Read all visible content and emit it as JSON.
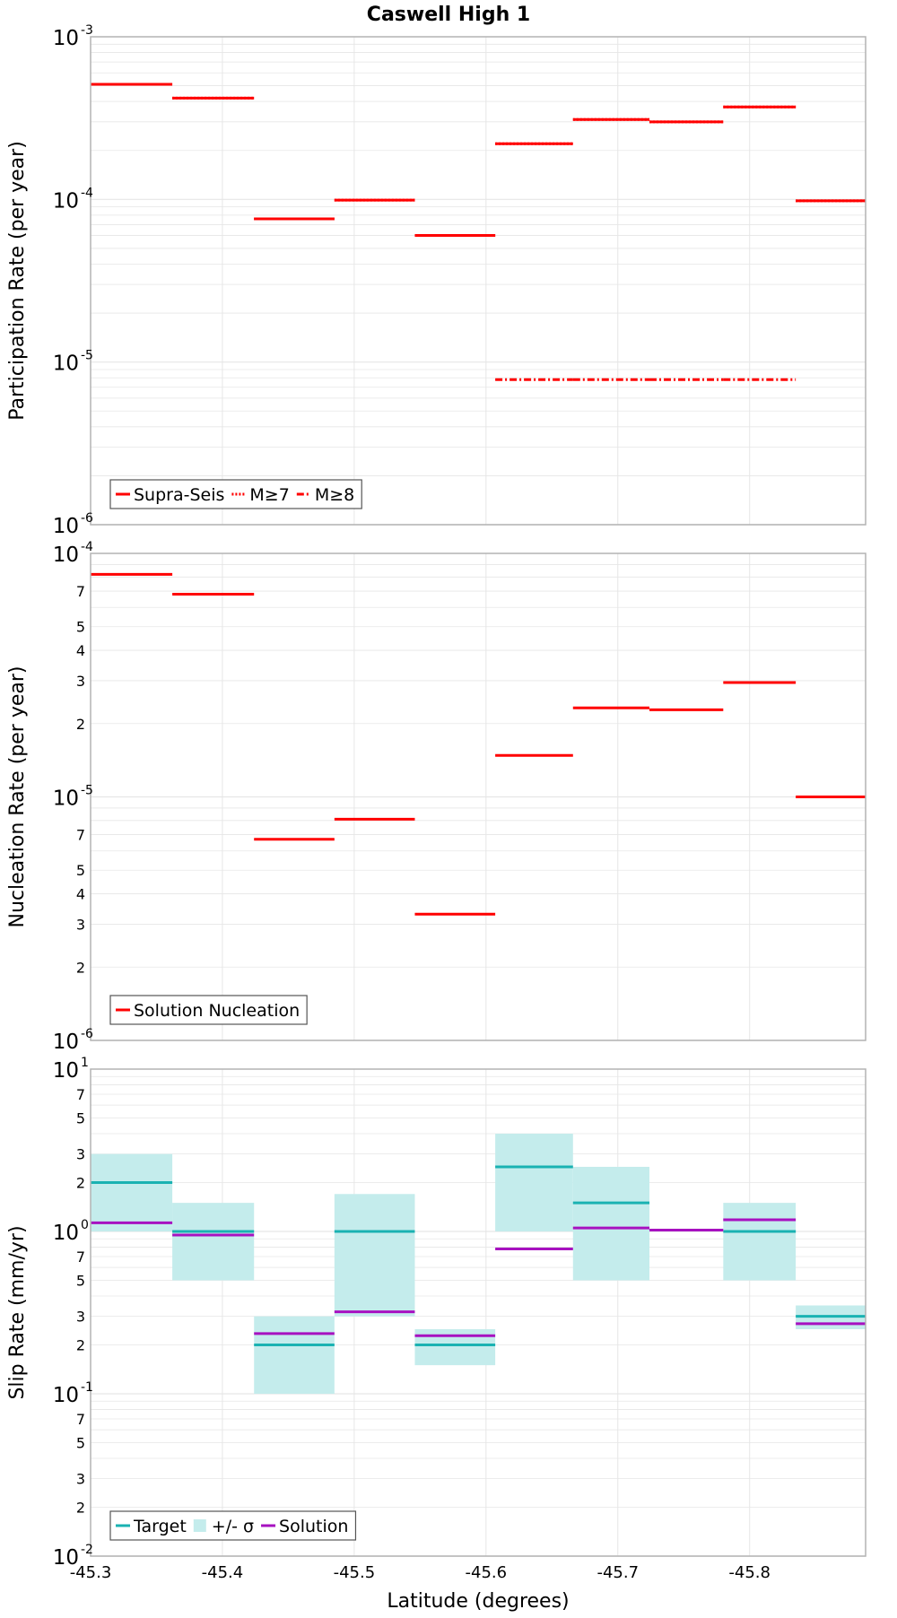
{
  "colors": {
    "supra": "#ff0000",
    "nucleation": "#ff0000",
    "target": "#1ab2b2",
    "band": "#c4ecec",
    "solution": "#a711c0",
    "grid": "#e6e6e6",
    "frame": "#b3b3b3"
  },
  "chart_data": [
    {
      "type": "line",
      "title": "Caswell High 1",
      "xlabel": "",
      "ylabel": "Participation Rate (per year)",
      "yscale": "log",
      "ylim": [
        1e-06,
        0.001
      ],
      "xlim": [
        -45.3,
        -45.888
      ],
      "x_tick_labels": [],
      "y_tick_labels": [
        {
          "base": "10",
          "exp": "-3",
          "value": 0.001
        },
        {
          "base": "10",
          "exp": "-4",
          "value": 0.0001
        },
        {
          "base": "10",
          "exp": "-5",
          "value": 1e-05
        },
        {
          "base": "10",
          "exp": "-6",
          "value": 1e-06
        }
      ],
      "legend": {
        "position": "bottom-left",
        "entries": [
          "Supra-Seis",
          "M≥7",
          "M≥8"
        ]
      },
      "series": [
        {
          "name": "Supra-Seis",
          "style": "solid",
          "segments": [
            {
              "x0": -45.3,
              "x1": -45.362,
              "y": 0.00051
            },
            {
              "x0": -45.362,
              "x1": -45.424,
              "y": 0.00042
            },
            {
              "x0": -45.424,
              "x1": -45.485,
              "y": 7.6e-05
            },
            {
              "x0": -45.485,
              "x1": -45.546,
              "y": 9.9e-05
            },
            {
              "x0": -45.546,
              "x1": -45.607,
              "y": 6e-05
            },
            {
              "x0": -45.607,
              "x1": -45.666,
              "y": 0.00022
            },
            {
              "x0": -45.666,
              "x1": -45.724,
              "y": 0.00031
            },
            {
              "x0": -45.724,
              "x1": -45.78,
              "y": 0.0003
            },
            {
              "x0": -45.78,
              "x1": -45.835,
              "y": 0.00037
            },
            {
              "x0": -45.835,
              "x1": -45.888,
              "y": 9.8e-05
            }
          ]
        },
        {
          "name": "M≥7",
          "style": "dotted",
          "segments": [
            {
              "x0": -45.3,
              "x1": -45.362,
              "y": 0.00051
            },
            {
              "x0": -45.362,
              "x1": -45.424,
              "y": 0.00042
            },
            {
              "x0": -45.424,
              "x1": -45.485,
              "y": 7.6e-05
            },
            {
              "x0": -45.485,
              "x1": -45.546,
              "y": 9.9e-05
            },
            {
              "x0": -45.546,
              "x1": -45.607,
              "y": 6e-05
            },
            {
              "x0": -45.607,
              "x1": -45.666,
              "y": 0.00022
            },
            {
              "x0": -45.666,
              "x1": -45.724,
              "y": 0.00031
            },
            {
              "x0": -45.724,
              "x1": -45.78,
              "y": 0.0003
            },
            {
              "x0": -45.78,
              "x1": -45.835,
              "y": 0.00037
            },
            {
              "x0": -45.835,
              "x1": -45.888,
              "y": 9.8e-05
            }
          ]
        },
        {
          "name": "M≥8",
          "style": "dashdot",
          "segments": [
            {
              "x0": -45.607,
              "x1": -45.666,
              "y": 7.8e-06
            },
            {
              "x0": -45.666,
              "x1": -45.724,
              "y": 7.8e-06
            },
            {
              "x0": -45.724,
              "x1": -45.78,
              "y": 7.8e-06
            },
            {
              "x0": -45.78,
              "x1": -45.835,
              "y": 7.8e-06
            }
          ]
        }
      ]
    },
    {
      "type": "line",
      "title": "",
      "xlabel": "",
      "ylabel": "Nucleation Rate (per year)",
      "yscale": "log",
      "ylim": [
        1e-06,
        0.0001
      ],
      "xlim": [
        -45.3,
        -45.888
      ],
      "x_tick_labels": [],
      "y_tick_labels": [
        {
          "base": "10",
          "exp": "-4",
          "value": 0.0001
        },
        {
          "base": "7",
          "exp": "",
          "value": 7e-05
        },
        {
          "base": "5",
          "exp": "",
          "value": 5e-05
        },
        {
          "base": "4",
          "exp": "",
          "value": 4e-05
        },
        {
          "base": "3",
          "exp": "",
          "value": 3e-05
        },
        {
          "base": "2",
          "exp": "",
          "value": 2e-05
        },
        {
          "base": "10",
          "exp": "-5",
          "value": 1e-05
        },
        {
          "base": "7",
          "exp": "",
          "value": 7e-06
        },
        {
          "base": "5",
          "exp": "",
          "value": 5e-06
        },
        {
          "base": "4",
          "exp": "",
          "value": 4e-06
        },
        {
          "base": "3",
          "exp": "",
          "value": 3e-06
        },
        {
          "base": "2",
          "exp": "",
          "value": 2e-06
        },
        {
          "base": "10",
          "exp": "-6",
          "value": 1e-06
        }
      ],
      "legend": {
        "position": "bottom-left",
        "entries": [
          "Solution Nucleation"
        ]
      },
      "series": [
        {
          "name": "Solution Nucleation",
          "style": "solid",
          "segments": [
            {
              "x0": -45.3,
              "x1": -45.362,
              "y": 8.2e-05
            },
            {
              "x0": -45.362,
              "x1": -45.424,
              "y": 6.8e-05
            },
            {
              "x0": -45.424,
              "x1": -45.485,
              "y": 6.7e-06
            },
            {
              "x0": -45.485,
              "x1": -45.546,
              "y": 8.1e-06
            },
            {
              "x0": -45.546,
              "x1": -45.607,
              "y": 3.3e-06
            },
            {
              "x0": -45.607,
              "x1": -45.666,
              "y": 1.48e-05
            },
            {
              "x0": -45.666,
              "x1": -45.724,
              "y": 2.32e-05
            },
            {
              "x0": -45.724,
              "x1": -45.78,
              "y": 2.28e-05
            },
            {
              "x0": -45.78,
              "x1": -45.835,
              "y": 2.95e-05
            },
            {
              "x0": -45.835,
              "x1": -45.888,
              "y": 1e-05
            }
          ]
        }
      ]
    },
    {
      "type": "line",
      "title": "",
      "xlabel": "Latitude (degrees)",
      "ylabel": "Slip Rate (mm/yr)",
      "yscale": "log",
      "ylim": [
        0.01,
        10
      ],
      "xlim": [
        -45.3,
        -45.888
      ],
      "x_tick_labels": [
        {
          "label": "-45.3",
          "value": -45.3
        },
        {
          "label": "-45.4",
          "value": -45.4
        },
        {
          "label": "-45.5",
          "value": -45.5
        },
        {
          "label": "-45.6",
          "value": -45.6
        },
        {
          "label": "-45.7",
          "value": -45.7
        },
        {
          "label": "-45.8",
          "value": -45.8
        }
      ],
      "y_tick_labels": [
        {
          "base": "10",
          "exp": "1",
          "value": 10
        },
        {
          "base": "7",
          "exp": "",
          "value": 7
        },
        {
          "base": "5",
          "exp": "",
          "value": 5
        },
        {
          "base": "3",
          "exp": "",
          "value": 3
        },
        {
          "base": "2",
          "exp": "",
          "value": 2
        },
        {
          "base": "10",
          "exp": "0",
          "value": 1
        },
        {
          "base": "7",
          "exp": "",
          "value": 0.7
        },
        {
          "base": "5",
          "exp": "",
          "value": 0.5
        },
        {
          "base": "3",
          "exp": "",
          "value": 0.3
        },
        {
          "base": "2",
          "exp": "",
          "value": 0.2
        },
        {
          "base": "10",
          "exp": "-1",
          "value": 0.1
        },
        {
          "base": "7",
          "exp": "",
          "value": 0.07
        },
        {
          "base": "5",
          "exp": "",
          "value": 0.05
        },
        {
          "base": "3",
          "exp": "",
          "value": 0.03
        },
        {
          "base": "2",
          "exp": "",
          "value": 0.02
        },
        {
          "base": "10",
          "exp": "-2",
          "value": 0.01
        }
      ],
      "legend": {
        "position": "bottom-left",
        "entries": [
          "Target",
          "+/- σ",
          "Solution"
        ]
      },
      "bands": [
        {
          "x0": -45.3,
          "x1": -45.362,
          "lo": 1.0,
          "hi": 3.0
        },
        {
          "x0": -45.362,
          "x1": -45.424,
          "lo": 0.5,
          "hi": 1.5
        },
        {
          "x0": -45.424,
          "x1": -45.485,
          "lo": 0.1,
          "hi": 0.3
        },
        {
          "x0": -45.485,
          "x1": -45.546,
          "lo": 0.3,
          "hi": 1.7
        },
        {
          "x0": -45.546,
          "x1": -45.607,
          "lo": 0.15,
          "hi": 0.25
        },
        {
          "x0": -45.607,
          "x1": -45.666,
          "lo": 1.0,
          "hi": 4.0
        },
        {
          "x0": -45.666,
          "x1": -45.724,
          "lo": 0.5,
          "hi": 2.5
        },
        {
          "x0": -45.78,
          "x1": -45.835,
          "lo": 0.5,
          "hi": 1.5
        },
        {
          "x0": -45.835,
          "x1": -45.888,
          "lo": 0.25,
          "hi": 0.35
        }
      ],
      "series": [
        {
          "name": "Target",
          "style": "solid",
          "segments": [
            {
              "x0": -45.3,
              "x1": -45.362,
              "y": 2.0
            },
            {
              "x0": -45.362,
              "x1": -45.424,
              "y": 1.0
            },
            {
              "x0": -45.424,
              "x1": -45.485,
              "y": 0.2
            },
            {
              "x0": -45.485,
              "x1": -45.546,
              "y": 1.0
            },
            {
              "x0": -45.546,
              "x1": -45.607,
              "y": 0.2
            },
            {
              "x0": -45.607,
              "x1": -45.666,
              "y": 2.5
            },
            {
              "x0": -45.666,
              "x1": -45.724,
              "y": 1.5
            },
            {
              "x0": -45.78,
              "x1": -45.835,
              "y": 1.0
            },
            {
              "x0": -45.835,
              "x1": -45.888,
              "y": 0.3
            }
          ]
        },
        {
          "name": "Solution",
          "style": "solid",
          "segments": [
            {
              "x0": -45.3,
              "x1": -45.362,
              "y": 1.13
            },
            {
              "x0": -45.362,
              "x1": -45.424,
              "y": 0.95
            },
            {
              "x0": -45.424,
              "x1": -45.485,
              "y": 0.235
            },
            {
              "x0": -45.485,
              "x1": -45.546,
              "y": 0.32
            },
            {
              "x0": -45.546,
              "x1": -45.607,
              "y": 0.228
            },
            {
              "x0": -45.607,
              "x1": -45.666,
              "y": 0.78
            },
            {
              "x0": -45.666,
              "x1": -45.724,
              "y": 1.05
            },
            {
              "x0": -45.724,
              "x1": -45.78,
              "y": 1.02
            },
            {
              "x0": -45.78,
              "x1": -45.835,
              "y": 1.18
            },
            {
              "x0": -45.835,
              "x1": -45.888,
              "y": 0.27
            }
          ]
        }
      ]
    }
  ]
}
